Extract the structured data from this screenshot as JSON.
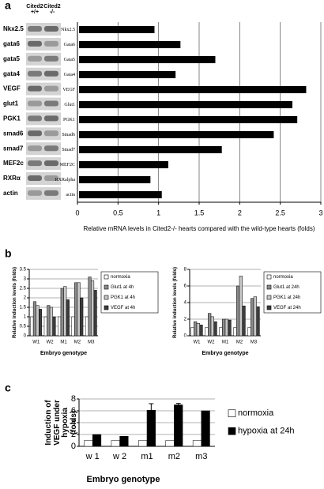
{
  "panels": [
    "a",
    "b",
    "c"
  ],
  "blot": {
    "header": [
      "Cited2 +/+",
      "Cited2 -/-"
    ],
    "genes": [
      "Nkx2.5",
      "gata6",
      "gata5",
      "gata4",
      "VEGF",
      "glut1",
      "PGK1",
      "smad6",
      "smad7",
      "MEF2c",
      "RXRα",
      "actin"
    ]
  },
  "chart_data": [
    {
      "type": "hbar",
      "categories": [
        "Nkx2.5",
        "Gata6",
        "Gata5",
        "Gata4",
        "VEGF",
        "Glut1",
        "PGK1",
        "Smad6",
        "Smad7",
        "MEF2C",
        "RXRalpha",
        "actin"
      ],
      "values": [
        0.93,
        1.25,
        1.68,
        1.19,
        2.8,
        2.63,
        2.69,
        2.4,
        1.76,
        1.1,
        0.88,
        1.02
      ],
      "color": "#000000",
      "xlim": [
        0,
        3
      ],
      "xticks": [
        0,
        0.5,
        1,
        1.5,
        2,
        2.5,
        3
      ],
      "grid": true,
      "xlabel": "Relative mRNA levels in Cited2-/- hearts compared with the wild-type hearts (folds)"
    },
    {
      "type": "bar",
      "categories": [
        "W1",
        "W2",
        "M1",
        "M2",
        "M3"
      ],
      "series": [
        {
          "name": "normoxia",
          "color": "#ffffff",
          "values": [
            1,
            1,
            1,
            1,
            1
          ]
        },
        {
          "name": "Glut1 at 4h",
          "color": "#8c8c8c",
          "values": [
            1.8,
            1.6,
            2.5,
            2.8,
            3.1
          ]
        },
        {
          "name": "PGK1 at 4h",
          "color": "#c8c8c8",
          "values": [
            1.6,
            1.5,
            2.6,
            2.8,
            2.9
          ]
        },
        {
          "name": "VEGF at 4h",
          "color": "#3c3c3c",
          "values": [
            1.4,
            1.0,
            1.9,
            2.0,
            2.4
          ]
        }
      ],
      "ylim": [
        0,
        3.5
      ],
      "yticks": [
        0,
        0.5,
        1,
        1.5,
        2,
        2.5,
        3,
        3.5
      ],
      "grid": true,
      "legend": "right",
      "ylabel": "Relative induction levels (folds)",
      "xlabel": "Embryo genotype"
    },
    {
      "type": "bar",
      "categories": [
        "W1",
        "W2",
        "M1",
        "M2",
        "M3"
      ],
      "series": [
        {
          "name": "normoxia",
          "color": "#ffffff",
          "values": [
            1,
            1,
            1,
            1,
            1
          ]
        },
        {
          "name": "Glut1 at 24h",
          "color": "#8c8c8c",
          "values": [
            1.7,
            2.7,
            2.0,
            6.0,
            4.5
          ]
        },
        {
          "name": "PGK1 at 24h",
          "color": "#c8c8c8",
          "values": [
            1.5,
            2.3,
            2.0,
            7.2,
            4.7
          ]
        },
        {
          "name": "VEGF at 24h",
          "color": "#3c3c3c",
          "values": [
            1.3,
            1.7,
            1.9,
            3.6,
            3.5
          ]
        }
      ],
      "ylim": [
        0,
        8
      ],
      "yticks": [
        0,
        2,
        4,
        6,
        8
      ],
      "grid": true,
      "legend": "right",
      "ylabel": "Relative induction levels (folds)",
      "xlabel": "Embryo genotype"
    },
    {
      "type": "bar",
      "categories": [
        "w 1",
        "w 2",
        "m1",
        "m2",
        "m3"
      ],
      "series": [
        {
          "name": "normoxia",
          "color": "#ffffff",
          "values": [
            1,
            1,
            1,
            1,
            1
          ]
        },
        {
          "name": "hypoxia at 24h",
          "color": "#000000",
          "values": [
            2.0,
            1.7,
            6.1,
            7.0,
            6.0
          ],
          "errors": [
            null,
            null,
            1.1,
            0.25,
            null
          ]
        }
      ],
      "ylim": [
        0,
        8
      ],
      "yticks": [
        0,
        2,
        4,
        6,
        8
      ],
      "grid": true,
      "legend": "right",
      "ylabel": "Induction of VEGF under hypoxia (folds)",
      "xlabel": "Embryo genotype"
    }
  ]
}
